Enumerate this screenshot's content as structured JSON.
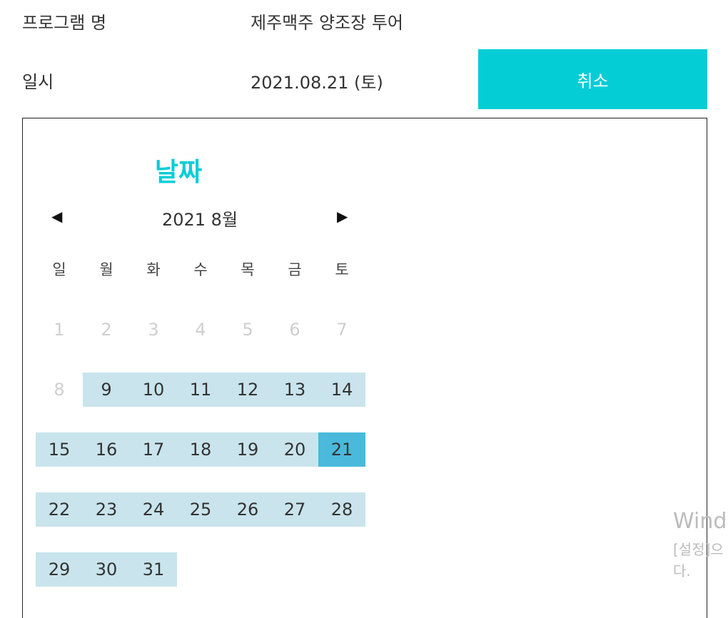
{
  "info": {
    "program_label": "프로그램 명",
    "program_value": "제주맥주 양조장 투어",
    "date_label": "일시",
    "date_value": "2021.08.21 (토)",
    "cancel_label": "취소"
  },
  "calendar": {
    "title": "날짜",
    "prev_symbol": "◀",
    "next_symbol": "▶",
    "month_label": "2021 8월",
    "weekdays": [
      "일",
      "월",
      "화",
      "수",
      "목",
      "금",
      "토"
    ],
    "days": [
      {
        "label": "1",
        "state": "disabled"
      },
      {
        "label": "2",
        "state": "disabled"
      },
      {
        "label": "3",
        "state": "disabled"
      },
      {
        "label": "4",
        "state": "disabled"
      },
      {
        "label": "5",
        "state": "disabled"
      },
      {
        "label": "6",
        "state": "disabled"
      },
      {
        "label": "7",
        "state": "disabled"
      },
      {
        "label": "8",
        "state": "disabled"
      },
      {
        "label": "9",
        "state": "available"
      },
      {
        "label": "10",
        "state": "available"
      },
      {
        "label": "11",
        "state": "available"
      },
      {
        "label": "12",
        "state": "available"
      },
      {
        "label": "13",
        "state": "available"
      },
      {
        "label": "14",
        "state": "available"
      },
      {
        "label": "15",
        "state": "available"
      },
      {
        "label": "16",
        "state": "available"
      },
      {
        "label": "17",
        "state": "available"
      },
      {
        "label": "18",
        "state": "available"
      },
      {
        "label": "19",
        "state": "available"
      },
      {
        "label": "20",
        "state": "available"
      },
      {
        "label": "21",
        "state": "selected"
      },
      {
        "label": "22",
        "state": "available"
      },
      {
        "label": "23",
        "state": "available"
      },
      {
        "label": "24",
        "state": "available"
      },
      {
        "label": "25",
        "state": "available"
      },
      {
        "label": "26",
        "state": "available"
      },
      {
        "label": "27",
        "state": "available"
      },
      {
        "label": "28",
        "state": "available"
      },
      {
        "label": "29",
        "state": "available"
      },
      {
        "label": "30",
        "state": "available"
      },
      {
        "label": "31",
        "state": "available"
      }
    ]
  },
  "watermark": {
    "line1": "Windo",
    "line2": "[설정]으",
    "line3": "다."
  },
  "colors": {
    "accent": "#05cdd6",
    "available_day": "#c9e4ec",
    "selected_day": "#4ab9dc",
    "disabled_day": "#cfcfcf"
  }
}
